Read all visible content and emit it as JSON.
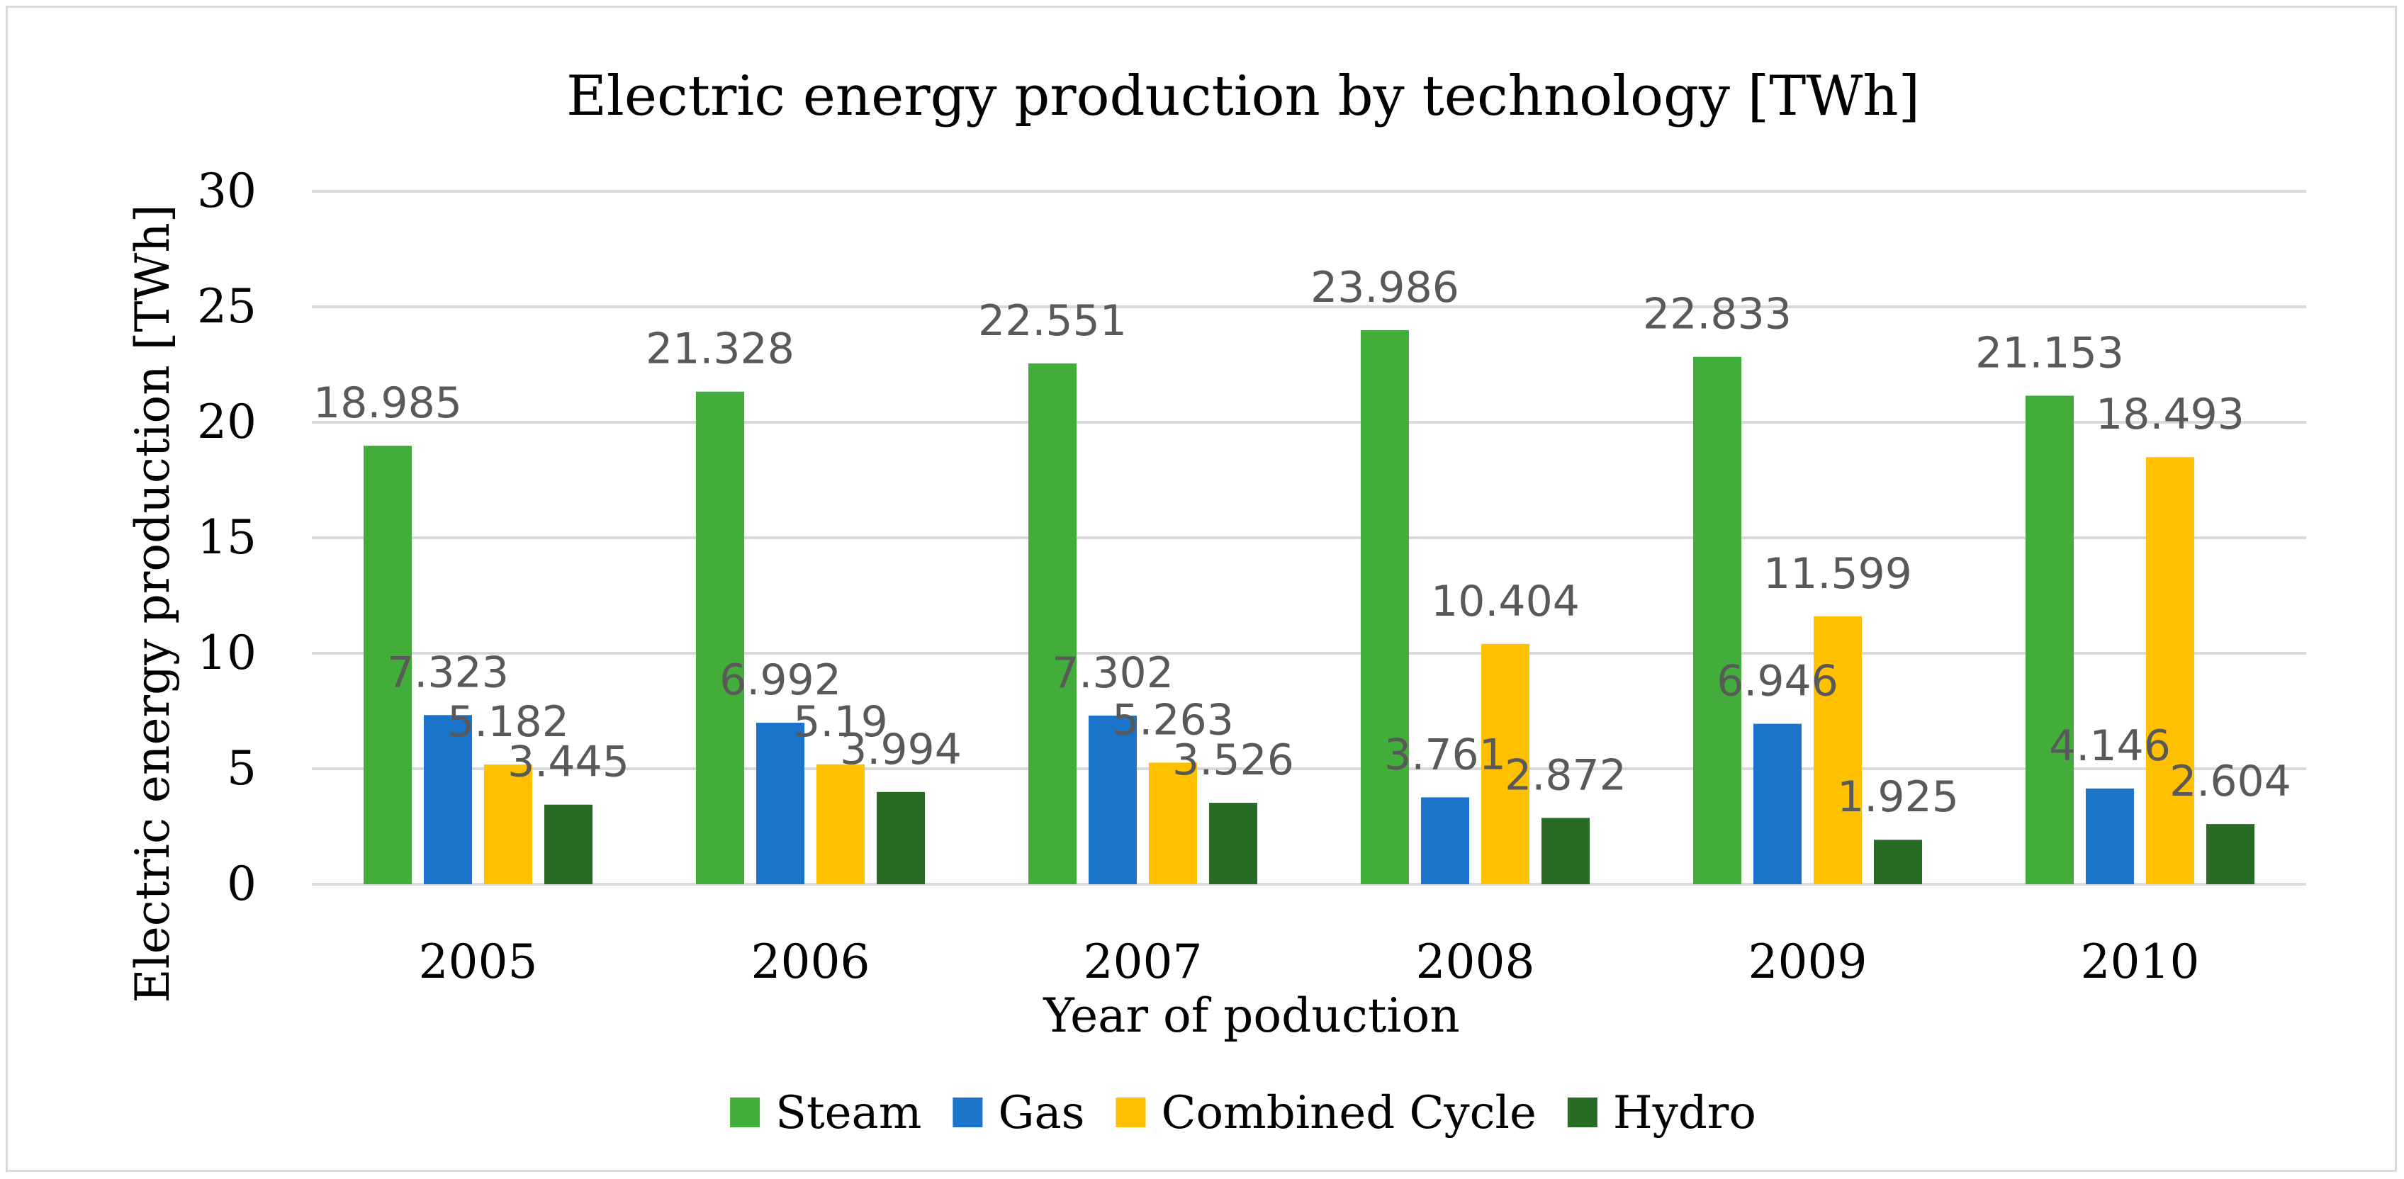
{
  "chart_data": {
    "type": "bar",
    "title": "Electric energy production by technology [TWh]",
    "xlabel": "Year of poduction",
    "ylabel": "Electric energy production [TWh]",
    "ylim": [
      0,
      30
    ],
    "yticks": [
      "0",
      "5",
      "10",
      "15",
      "20",
      "25",
      "30"
    ],
    "categories": [
      "2005",
      "2006",
      "2007",
      "2008",
      "2009",
      "2010"
    ],
    "legend_position": "bottom",
    "grid": true,
    "series": [
      {
        "name": "Steam",
        "color": "#43ad3c",
        "values": [
          18.985,
          21.328,
          22.551,
          23.986,
          22.833,
          21.153
        ],
        "labels": [
          "18.985",
          "21.328",
          "22.551",
          "23.986",
          "22.833",
          "21.153"
        ]
      },
      {
        "name": "Gas",
        "color": "#1a74c9",
        "values": [
          7.323,
          6.992,
          7.302,
          3.761,
          6.946,
          4.146
        ],
        "labels": [
          "7.323",
          "6.992",
          "7.302",
          "3.761",
          "6.946",
          "4.146"
        ]
      },
      {
        "name": "Combined Cycle",
        "color": "#ffc000",
        "values": [
          5.182,
          5.19,
          5.263,
          10.404,
          11.599,
          18.493
        ],
        "labels": [
          "5.182",
          "5.19",
          "5.263",
          "10.404",
          "11.599",
          "18.493"
        ]
      },
      {
        "name": "Hydro",
        "color": "#276b25",
        "values": [
          3.445,
          3.994,
          3.526,
          2.872,
          1.925,
          2.604
        ],
        "labels": [
          "3.445",
          "3.994",
          "3.526",
          "2.872",
          "1.925",
          "2.604"
        ]
      }
    ]
  }
}
